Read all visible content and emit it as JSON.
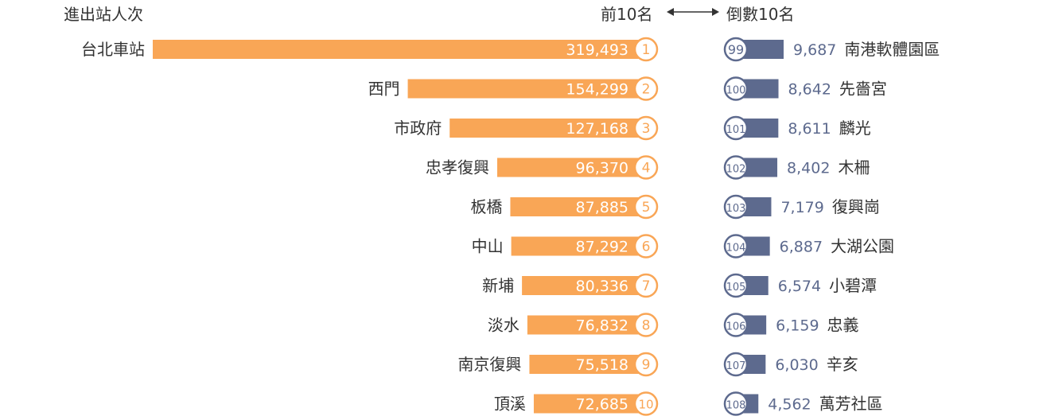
{
  "chart_data": {
    "type": "bar",
    "title": "進出站人次",
    "top_label": "前10名",
    "bottom_label": "倒數10名",
    "colors": {
      "top": "#F9A656",
      "bottom": "#5D6A8E"
    },
    "top10": [
      {
        "rank": "1",
        "name": "台北車站",
        "value": 319493,
        "value_label": "319,493"
      },
      {
        "rank": "2",
        "name": "西門",
        "value": 154299,
        "value_label": "154,299"
      },
      {
        "rank": "3",
        "name": "市政府",
        "value": 127168,
        "value_label": "127,168"
      },
      {
        "rank": "4",
        "name": "忠孝復興",
        "value": 96370,
        "value_label": "96,370"
      },
      {
        "rank": "5",
        "name": "板橋",
        "value": 87885,
        "value_label": "87,885"
      },
      {
        "rank": "6",
        "name": "中山",
        "value": 87292,
        "value_label": "87,292"
      },
      {
        "rank": "7",
        "name": "新埔",
        "value": 80336,
        "value_label": "80,336"
      },
      {
        "rank": "8",
        "name": "淡水",
        "value": 76832,
        "value_label": "76,832"
      },
      {
        "rank": "9",
        "name": "南京復興",
        "value": 75518,
        "value_label": "75,518"
      },
      {
        "rank": "10",
        "name": "頂溪",
        "value": 72685,
        "value_label": "72,685"
      }
    ],
    "bottom10": [
      {
        "rank": "99",
        "name": "南港軟體園區",
        "value": 9687,
        "value_label": "9,687"
      },
      {
        "rank": "100",
        "name": "先嗇宮",
        "value": 8642,
        "value_label": "8,642"
      },
      {
        "rank": "101",
        "name": "麟光",
        "value": 8611,
        "value_label": "8,611"
      },
      {
        "rank": "102",
        "name": "木柵",
        "value": 8402,
        "value_label": "8,402"
      },
      {
        "rank": "103",
        "name": "復興崗",
        "value": 7179,
        "value_label": "7,179"
      },
      {
        "rank": "104",
        "name": "大湖公園",
        "value": 6887,
        "value_label": "6,887"
      },
      {
        "rank": "105",
        "name": "小碧潭",
        "value": 6574,
        "value_label": "6,574"
      },
      {
        "rank": "106",
        "name": "忠義",
        "value": 6159,
        "value_label": "6,159"
      },
      {
        "rank": "107",
        "name": "辛亥",
        "value": 6030,
        "value_label": "6,030"
      },
      {
        "rank": "108",
        "name": "萬芳社區",
        "value": 4562,
        "value_label": "4,562"
      }
    ]
  }
}
